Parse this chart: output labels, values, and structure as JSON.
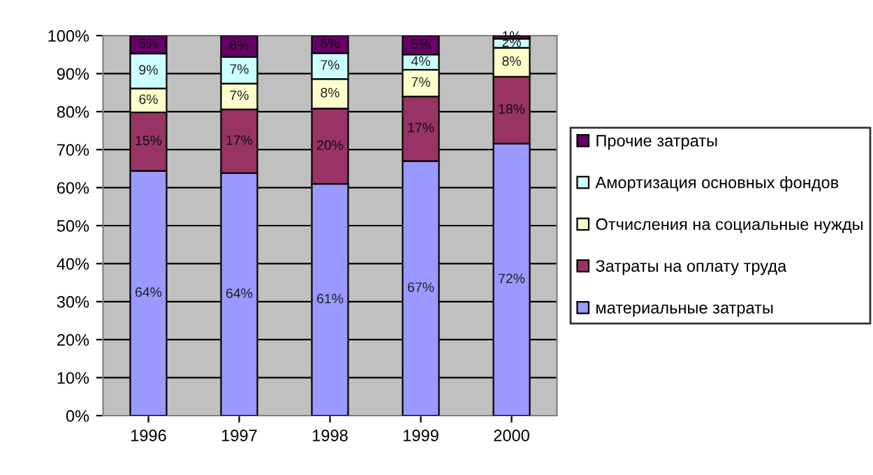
{
  "chart_data": {
    "type": "bar",
    "stacked": true,
    "categories": [
      "1996",
      "1997",
      "1998",
      "1999",
      "2000"
    ],
    "series": [
      {
        "name": "материальные затраты",
        "color": "#9999ff",
        "values": [
          64.4,
          63.8,
          61.0,
          67.0,
          71.6
        ],
        "value_labels": [
          "64%",
          "64%",
          "61%",
          "67%",
          "72%"
        ]
      },
      {
        "name": "Затраты на оплату труда",
        "color": "#993366",
        "values": [
          15.4,
          16.8,
          19.8,
          17.0,
          17.6
        ],
        "value_labels": [
          "15%",
          "17%",
          "20%",
          "17%",
          "18%"
        ]
      },
      {
        "name": "Отчисления на социальные нужды",
        "color": "#ffffcc",
        "values": [
          6.3,
          6.8,
          7.8,
          7.0,
          7.6
        ],
        "value_labels": [
          "6%",
          "7%",
          "8%",
          "7%",
          "8%"
        ]
      },
      {
        "name": "Амортизация основных фондов",
        "color": "#ccffff",
        "values": [
          9.2,
          7.0,
          6.8,
          4.0,
          2.4
        ],
        "value_labels": [
          "9%",
          "7%",
          "7%",
          "4%",
          "2%"
        ]
      },
      {
        "name": "Прочие затраты",
        "color": "#660066",
        "values": [
          4.7,
          5.6,
          4.6,
          5.0,
          0.8
        ],
        "value_labels": [
          "5%",
          "6%",
          "5%",
          "5%",
          "1%"
        ]
      }
    ],
    "ylim": [
      0,
      100
    ],
    "yticks": [
      {
        "value": 0,
        "label": "0%"
      },
      {
        "value": 10,
        "label": "10%"
      },
      {
        "value": 20,
        "label": "20%"
      },
      {
        "value": 30,
        "label": "30%"
      },
      {
        "value": 40,
        "label": "40%"
      },
      {
        "value": 50,
        "label": "50%"
      },
      {
        "value": 60,
        "label": "60%"
      },
      {
        "value": 70,
        "label": "70%"
      },
      {
        "value": 80,
        "label": "80%"
      },
      {
        "value": 90,
        "label": "90%"
      },
      {
        "value": 100,
        "label": "100%"
      }
    ],
    "grid": "y",
    "legend": "right"
  }
}
